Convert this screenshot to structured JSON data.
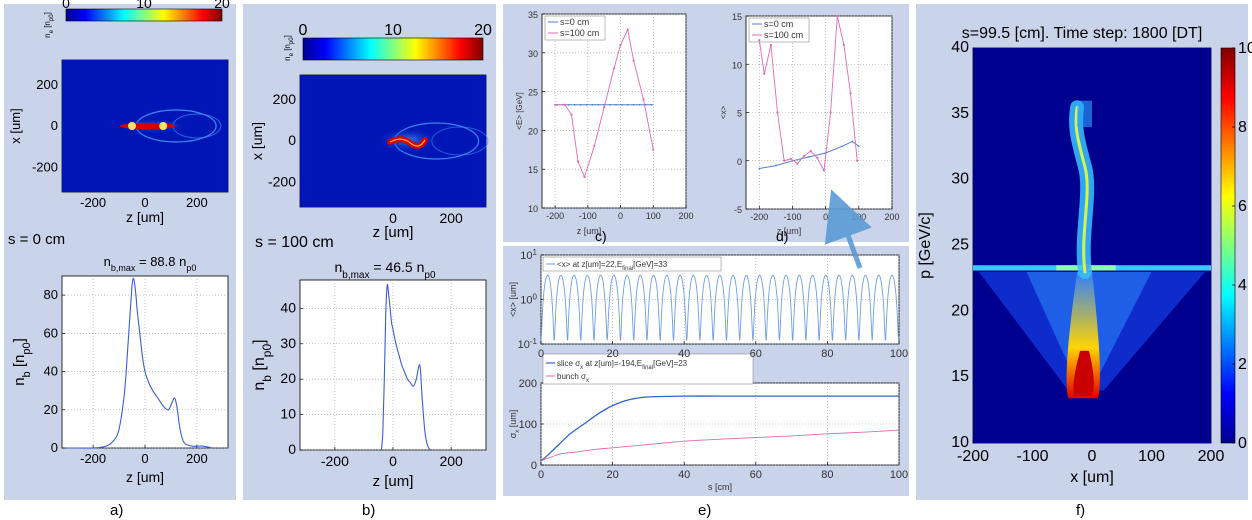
{
  "panel_labels": {
    "a": "a)",
    "b": "b)",
    "c": "c)",
    "d": "d)",
    "e": "e)",
    "f": "f)"
  },
  "colors": {
    "panel_bg": "#c9d3ea",
    "series_s0": "#4f7fd0",
    "series_s100": "#e06ab0",
    "bunch_sigma": "#e06ab0",
    "arrow": "#5b9bd5"
  },
  "chart_data": [
    {
      "id": "a_density",
      "type": "heatmap",
      "colorbar": {
        "label": "n_e [n_p0]",
        "ticks": [
          "0",
          "10",
          "20"
        ],
        "range": [
          0,
          20
        ],
        "colormap": "jet"
      },
      "ylabel": "x [um]",
      "xlabel": "z [um]",
      "xticks": [
        "-200",
        "0",
        "200"
      ],
      "yticks": [
        "200",
        "0",
        "-200"
      ],
      "xlim": [
        -320,
        320
      ],
      "ylim": [
        -320,
        320
      ]
    },
    {
      "id": "a_profile",
      "type": "line",
      "caption": "s = 0 cm",
      "title": "n_b,max = 88.8 n_p0",
      "xlabel": "z [um]",
      "ylabel": "n_b [n_p0]",
      "xlim": [
        -320,
        320
      ],
      "ylim": [
        0,
        90
      ],
      "xticks": [
        "-200",
        "0",
        "200"
      ],
      "yticks": [
        "0",
        "20",
        "40",
        "60",
        "80"
      ],
      "x": [
        -300,
        -250,
        -200,
        -150,
        -120,
        -100,
        -80,
        -65,
        -55,
        -50,
        -45,
        -40,
        -35,
        -30,
        -20,
        -10,
        0,
        15,
        30,
        50,
        70,
        90,
        105,
        115,
        125,
        135,
        150,
        180,
        220,
        260
      ],
      "y": [
        0,
        0,
        0,
        1,
        4,
        10,
        28,
        55,
        75,
        85,
        88.8,
        86,
        80,
        72,
        60,
        48,
        40,
        34,
        30,
        26,
        22,
        20,
        24,
        26,
        20,
        10,
        3,
        1,
        1,
        0
      ],
      "grid": true
    },
    {
      "id": "b_density",
      "type": "heatmap",
      "colorbar": {
        "label": "n_e [n_p0]",
        "ticks": [
          "0",
          "10",
          "20"
        ],
        "range": [
          0,
          20
        ],
        "colormap": "jet"
      },
      "ylabel": "x [um]",
      "xlabel": "z [um]",
      "xticks": [
        "0",
        "200"
      ],
      "yticks": [
        "200",
        "0",
        "-200"
      ],
      "xlim": [
        -320,
        320
      ],
      "ylim": [
        -320,
        320
      ]
    },
    {
      "id": "b_profile",
      "type": "line",
      "caption": "s = 100 cm",
      "title": "n_b,max = 46.5 n_p0",
      "xlabel": "z [um]",
      "ylabel": "n_b [n_p0]",
      "xlim": [
        -320,
        320
      ],
      "ylim": [
        0,
        48
      ],
      "xticks": [
        "-200",
        "0",
        "200"
      ],
      "yticks": [
        "0",
        "10",
        "20",
        "30",
        "40"
      ],
      "x": [
        -40,
        -35,
        -30,
        -25,
        -20,
        -15,
        -10,
        -5,
        0,
        10,
        20,
        30,
        40,
        50,
        60,
        70,
        80,
        90,
        95,
        100,
        110,
        120,
        130
      ],
      "y": [
        0,
        5,
        20,
        38,
        46.5,
        44,
        40,
        36,
        34,
        30,
        27,
        24,
        22,
        20,
        19,
        18,
        20,
        24,
        22,
        15,
        5,
        1,
        0
      ],
      "grid": true
    },
    {
      "id": "c_energy",
      "type": "line",
      "xlabel": "z [um]",
      "ylabel": "<E> [GeV]",
      "xlim": [
        -240,
        200
      ],
      "ylim": [
        10,
        35
      ],
      "xticks": [
        "-200",
        "-100",
        "0",
        "100",
        "200"
      ],
      "yticks": [
        "10",
        "15",
        "20",
        "25",
        "30",
        "35"
      ],
      "legend": [
        "s=0 cm",
        "s=100 cm"
      ],
      "series": [
        {
          "name": "s=0 cm",
          "x": [
            -200,
            -100,
            0,
            100
          ],
          "y": [
            23.3,
            23.3,
            23.3,
            23.3
          ],
          "markers": [
            -194,
            -176,
            -158,
            -140,
            -122,
            -104,
            -86,
            -68,
            -50,
            -32,
            -14,
            4,
            22,
            40,
            58,
            76,
            94
          ]
        },
        {
          "name": "s=100 cm",
          "x": [
            -200,
            -170,
            -150,
            -130,
            -110,
            -80,
            -50,
            -20,
            0,
            22,
            40,
            70,
            100
          ],
          "y": [
            23.3,
            23.3,
            22,
            16,
            14,
            18,
            23,
            28,
            31,
            33,
            29,
            24,
            17.5
          ]
        }
      ],
      "grid": true
    },
    {
      "id": "d_centroid",
      "type": "line",
      "xlabel": "z [um]",
      "ylabel": "<x>",
      "xlim": [
        -240,
        200
      ],
      "ylim": [
        -5,
        15
      ],
      "xticks": [
        "-200",
        "-100",
        "0",
        "100",
        "200"
      ],
      "yticks": [
        "-5",
        "0",
        "5",
        "10",
        "15"
      ],
      "legend": [
        "s=0 cm",
        "s=100 cm"
      ],
      "series": [
        {
          "name": "s=0 cm",
          "x": [
            -200,
            -150,
            -100,
            -50,
            0,
            50,
            80,
            100
          ],
          "y": [
            -0.8,
            -0.5,
            0,
            0.4,
            0.8,
            1.5,
            2,
            1.5
          ]
        },
        {
          "name": "s=100 cm",
          "x": [
            -200,
            -185,
            -165,
            -145,
            -125,
            -105,
            -85,
            -65,
            -45,
            -25,
            -5,
            15,
            35,
            55,
            75,
            95
          ],
          "y": [
            12.5,
            9,
            12,
            5,
            0,
            0.2,
            -0.3,
            0.5,
            1,
            0.3,
            -1,
            5,
            15,
            12,
            7,
            0
          ]
        }
      ],
      "grid": true
    },
    {
      "id": "e_oscillation",
      "type": "line",
      "yscale": "log",
      "xlabel": "",
      "ylabel": "<x> [um]",
      "xlim": [
        0,
        100
      ],
      "ylim": [
        0.1,
        10
      ],
      "xticks": [
        "0",
        "20",
        "40",
        "60",
        "80",
        "100"
      ],
      "yticks": [
        "10^1",
        "10^0",
        "10^-1"
      ],
      "legend": [
        "<x> at z[um]=22,E_final[GeV]=33"
      ],
      "series": [
        {
          "name": "<x> at z[um]=22,E_final[GeV]=33",
          "period": 3.7,
          "peak": 3.5,
          "minimum": 0.12
        }
      ],
      "grid": true
    },
    {
      "id": "e_sigma",
      "type": "line",
      "xlabel": "s [cm]",
      "ylabel": "σ_x [um]",
      "xlim": [
        0,
        100
      ],
      "ylim": [
        0,
        200
      ],
      "xticks": [
        "0",
        "20",
        "40",
        "60",
        "80",
        "100"
      ],
      "yticks": [
        "0",
        "100",
        "200"
      ],
      "legend": [
        "slice σ_x at z[um]=-194,E_final[GeV]=23",
        "bunch σ_x"
      ],
      "series": [
        {
          "name": "slice σ_x at z[um]=-194,E_final[GeV]=23",
          "x": [
            0,
            2,
            5,
            8,
            12,
            16,
            20,
            25,
            30,
            40,
            50,
            60,
            70,
            80,
            90,
            100
          ],
          "y": [
            10,
            25,
            50,
            75,
            100,
            125,
            145,
            160,
            166,
            168,
            168,
            168,
            168,
            168,
            168,
            168
          ]
        },
        {
          "name": "bunch σ_x",
          "x": [
            0,
            3,
            6,
            10,
            15,
            20,
            30,
            40,
            50,
            60,
            70,
            80,
            90,
            100
          ],
          "y": [
            10,
            20,
            28,
            32,
            38,
            42,
            50,
            58,
            63,
            67,
            71,
            76,
            80,
            85
          ]
        }
      ],
      "grid": true
    },
    {
      "id": "f_phase_space",
      "type": "heatmap",
      "title": "s=99.5 [cm].   Time step: 1800 [DT]",
      "xlabel": "x [um]",
      "ylabel": "p [GeV/c]",
      "xlim": [
        -200,
        200
      ],
      "ylim": [
        10,
        40
      ],
      "xticks": [
        "-200",
        "-100",
        "0",
        "100",
        "200"
      ],
      "yticks": [
        "10",
        "15",
        "20",
        "25",
        "30",
        "35",
        "40"
      ],
      "colorbar": {
        "ticks": [
          "0",
          "2",
          "4",
          "6",
          "8",
          "10"
        ],
        "range": [
          0,
          10
        ],
        "colormap": "jet"
      }
    }
  ]
}
